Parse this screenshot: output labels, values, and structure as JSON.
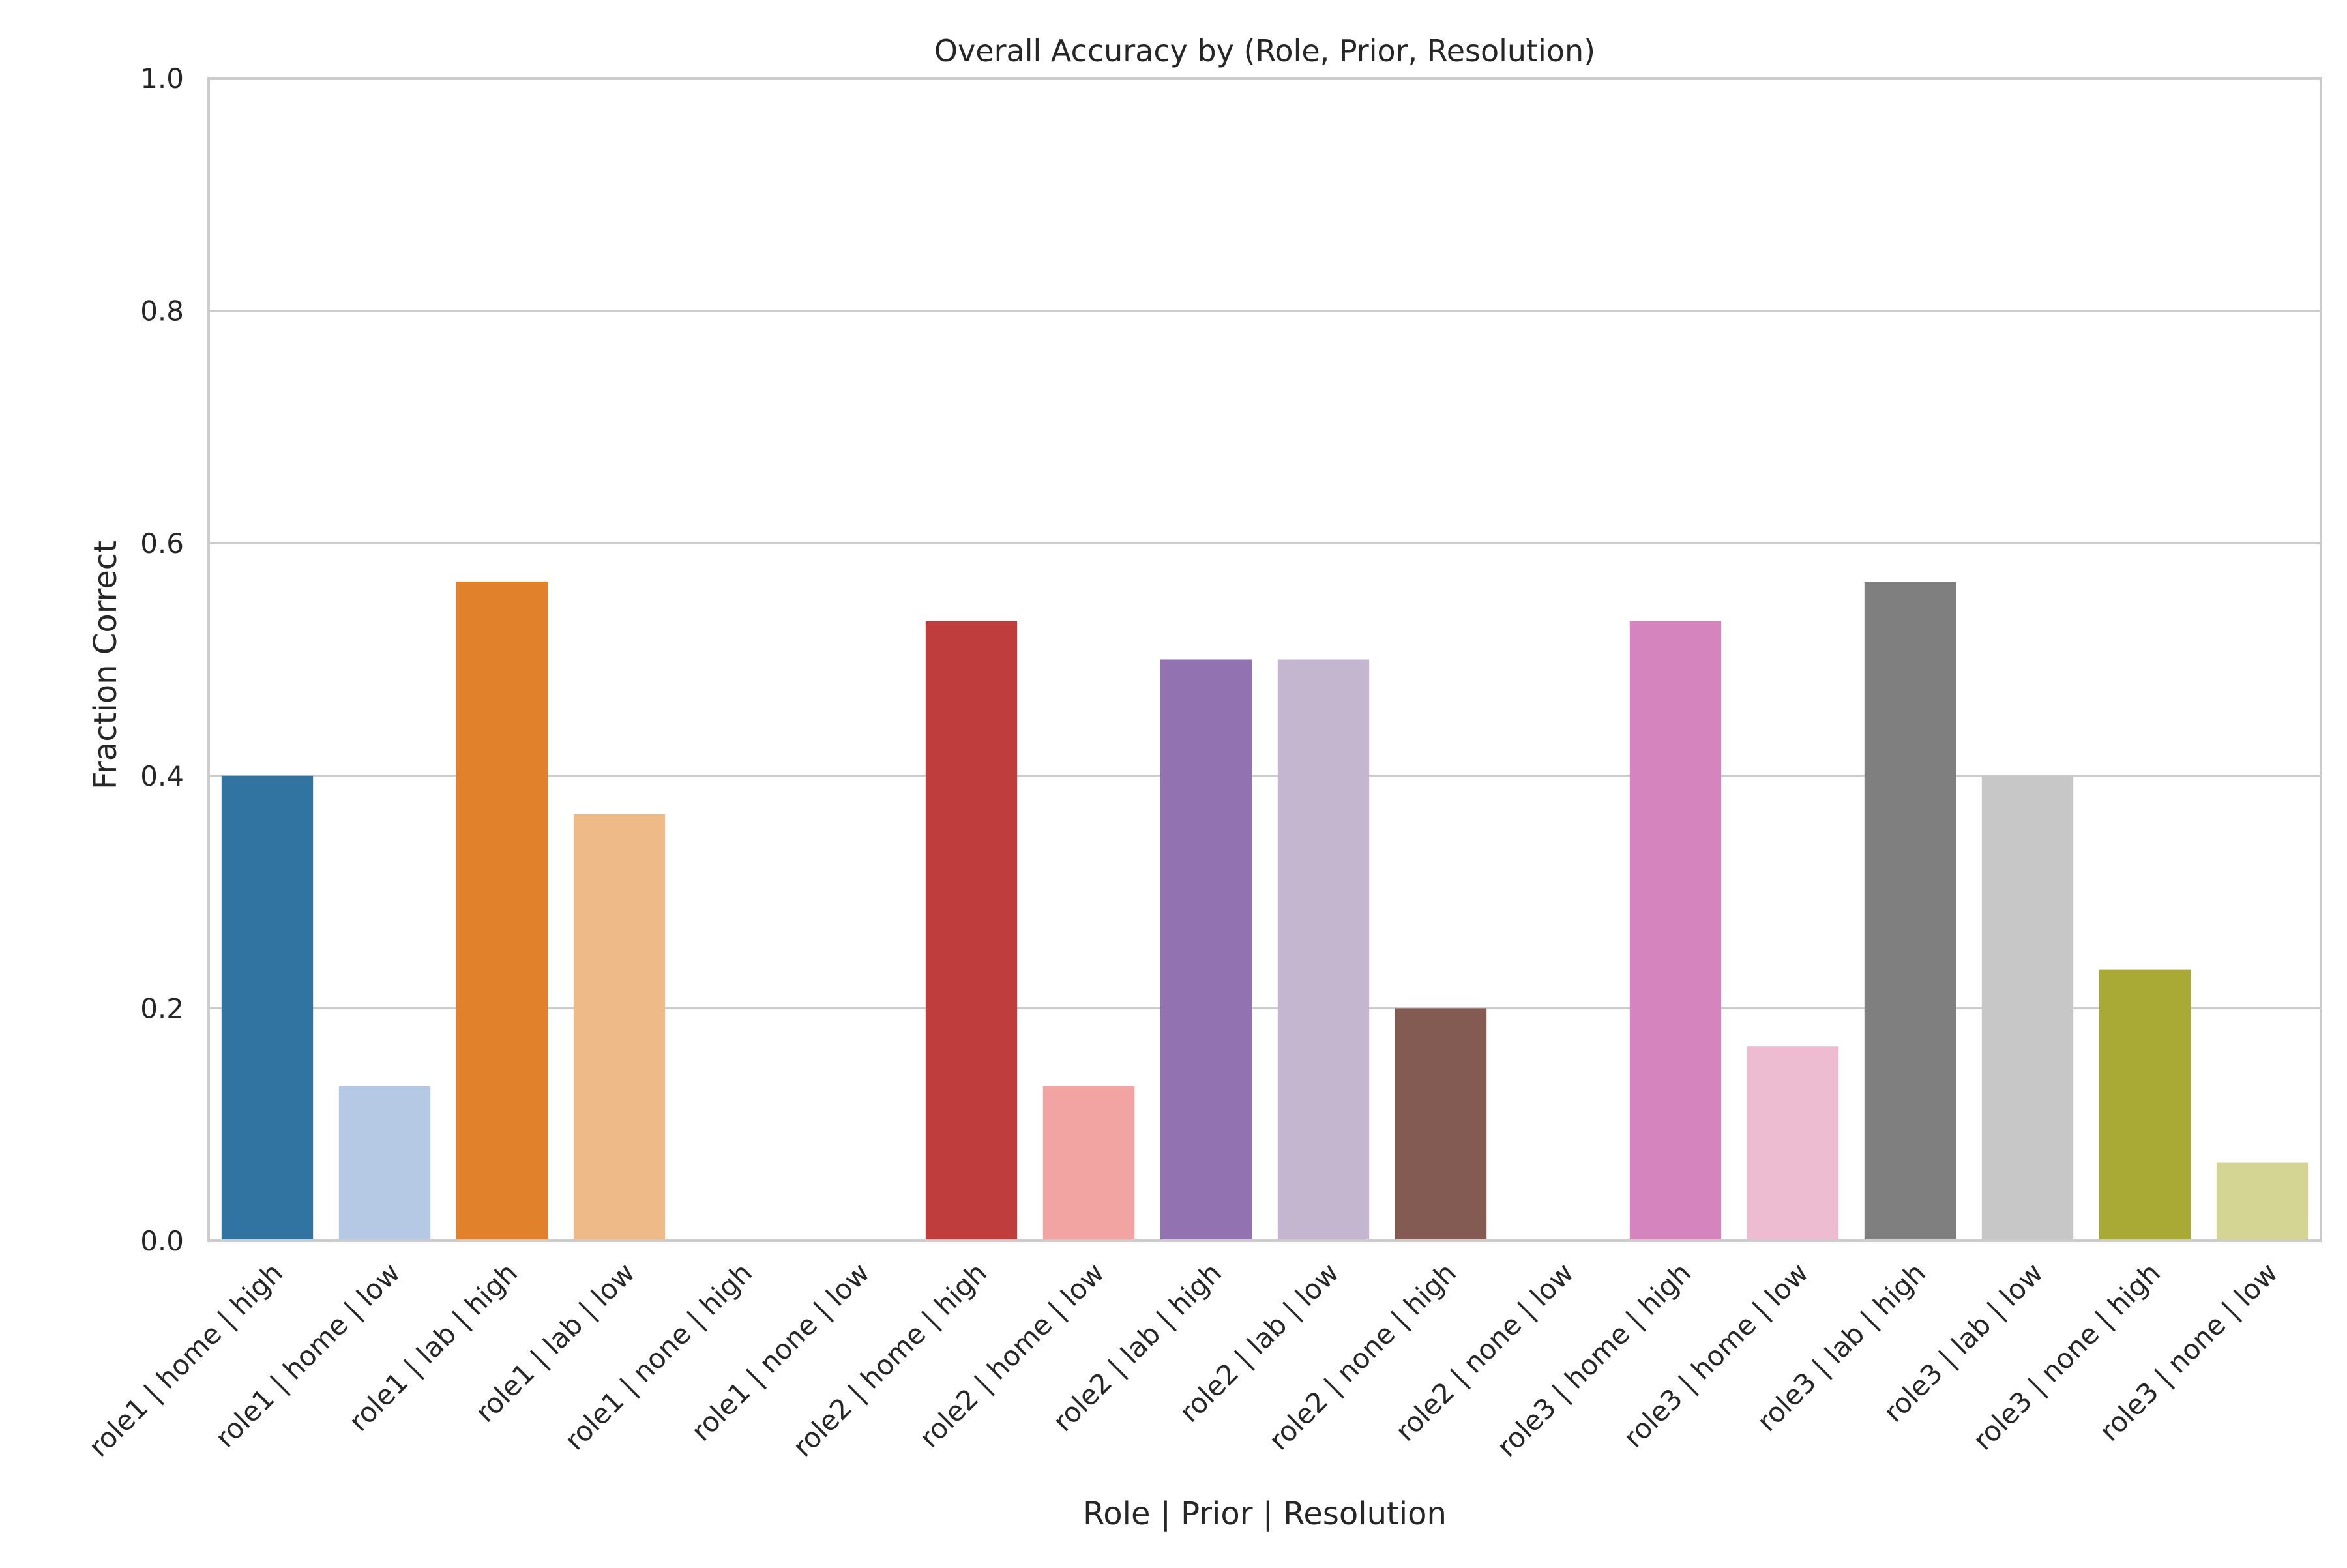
{
  "chart_data": {
    "type": "bar",
    "title": "Overall Accuracy by (Role, Prior, Resolution)",
    "xlabel": "Role | Prior | Resolution",
    "ylabel": "Fraction Correct",
    "ylim": [
      0,
      1.0
    ],
    "yticks": [
      "0.0",
      "0.2",
      "0.4",
      "0.6",
      "0.8",
      "1.0"
    ],
    "grid": "horizontal",
    "categories": [
      "role1 | home | high",
      "role1 | home | low",
      "role1 | lab | high",
      "role1 | lab | low",
      "role1 | none | high",
      "role1 | none | low",
      "role2 | home | high",
      "role2 | home | low",
      "role2 | lab | high",
      "role2 | lab | low",
      "role2 | none | high",
      "role2 | none | low",
      "role3 | home | high",
      "role3 | home | low",
      "role3 | lab | high",
      "role3 | lab | low",
      "role3 | none | high",
      "role3 | none | low"
    ],
    "values": [
      0.4,
      0.133,
      0.567,
      0.367,
      0.0,
      0.0,
      0.533,
      0.133,
      0.5,
      0.5,
      0.2,
      0.0,
      0.533,
      0.167,
      0.567,
      0.4,
      0.233,
      0.067
    ],
    "colors": [
      "#3274a1",
      "#b5c8e4",
      "#e1812c",
      "#eebb88",
      "#3a923a",
      "#a6d88c",
      "#c03d3e",
      "#f2a4a2",
      "#9372b2",
      "#c5b6d0",
      "#845b53",
      "#c9a39b",
      "#d684bd",
      "#eebcd0",
      "#7f7f7f",
      "#c7c7c7",
      "#a9aa35",
      "#d4d493"
    ]
  }
}
